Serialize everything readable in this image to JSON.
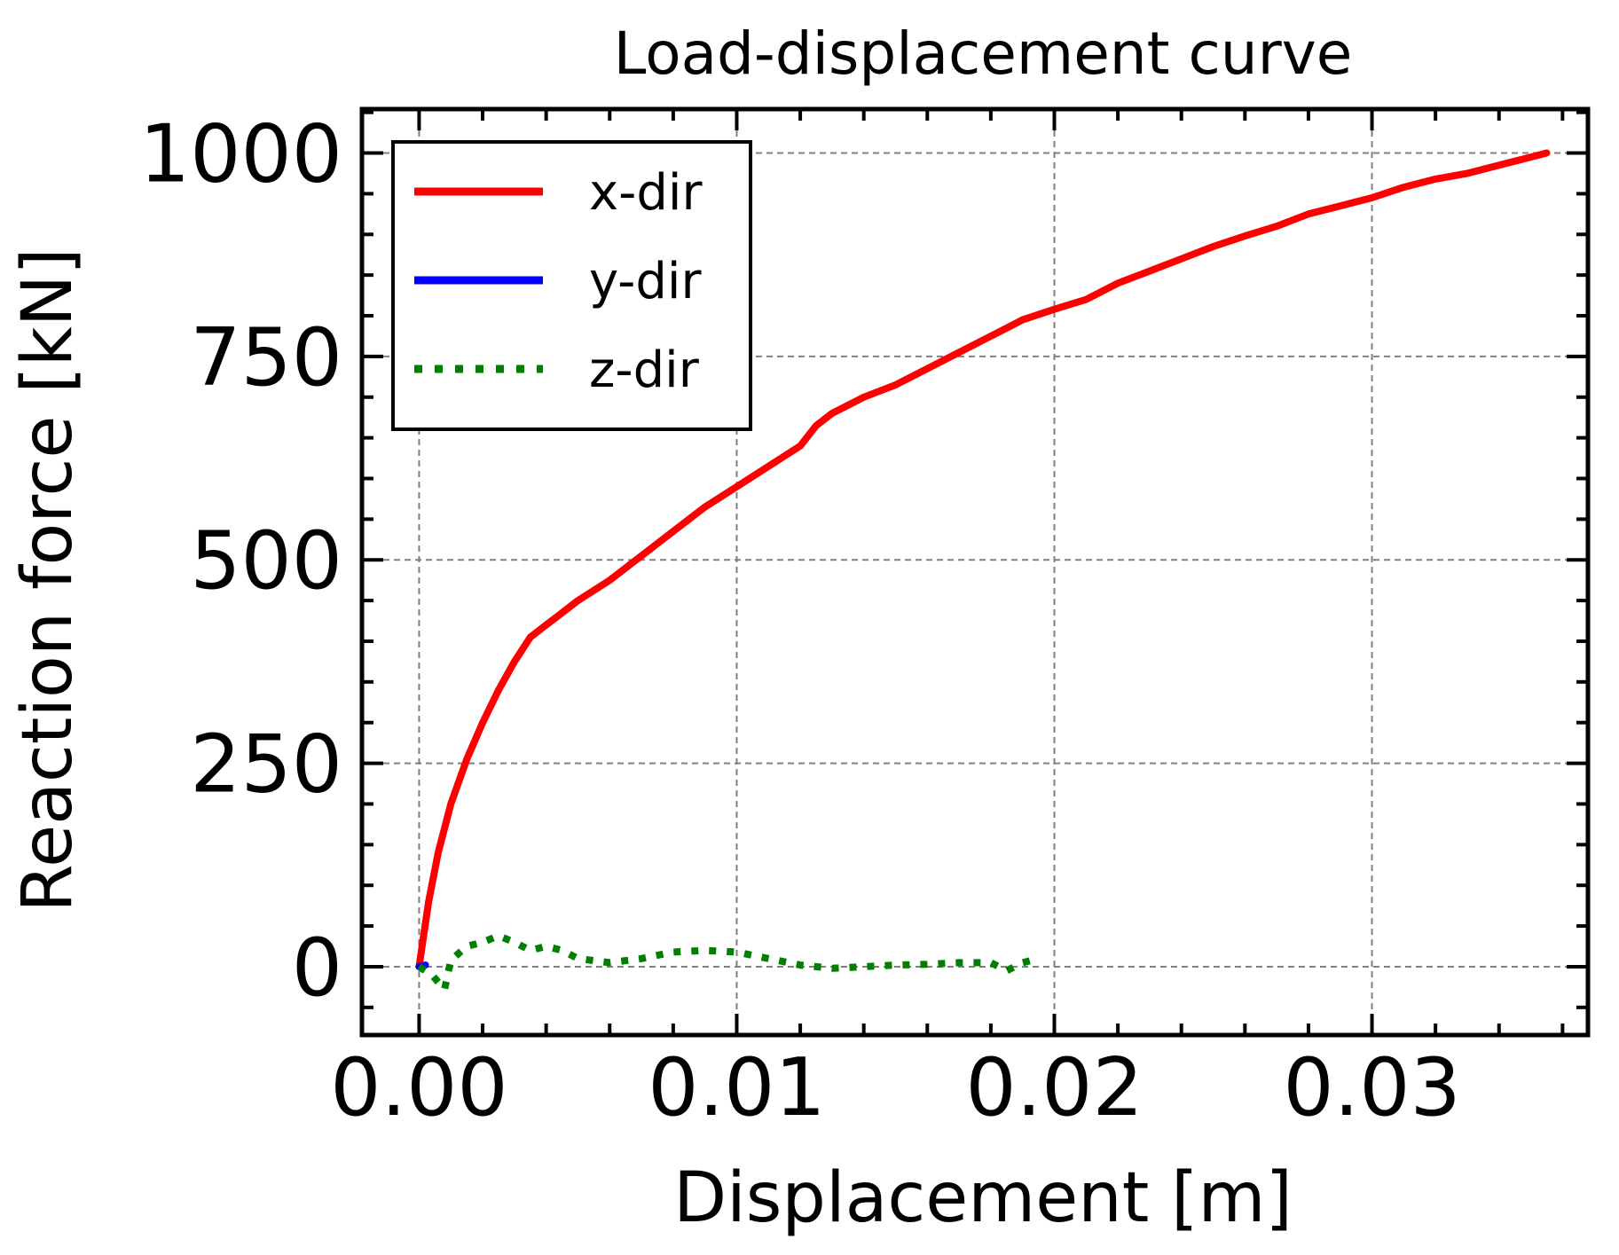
{
  "chart_data": {
    "type": "line",
    "title": "Load-displacement curve",
    "xlabel": "Displacement [m]",
    "ylabel": "Reaction force [kN]",
    "xlim": [
      -0.0018,
      0.0368
    ],
    "ylim": [
      -84,
      1054
    ],
    "xticks": [
      0.0,
      0.01,
      0.02,
      0.03
    ],
    "xtick_labels": [
      "0.00",
      "0.01",
      "0.02",
      "0.03"
    ],
    "yticks": [
      0,
      250,
      500,
      750,
      1000
    ],
    "ytick_labels": [
      "0",
      "250",
      "500",
      "750",
      "1000"
    ],
    "x_minor_step": 0.002,
    "y_minor_step": 50,
    "grid": true,
    "legend_position": "upper-left",
    "series": [
      {
        "name": "x-dir",
        "color": "#ff0000",
        "style": "solid",
        "x": [
          0.0,
          0.0003,
          0.0006,
          0.001,
          0.0015,
          0.002,
          0.0025,
          0.003,
          0.0035,
          0.004,
          0.0045,
          0.005,
          0.006,
          0.007,
          0.008,
          0.009,
          0.01,
          0.011,
          0.012,
          0.0125,
          0.013,
          0.014,
          0.015,
          0.016,
          0.017,
          0.018,
          0.019,
          0.02,
          0.021,
          0.022,
          0.023,
          0.024,
          0.025,
          0.026,
          0.027,
          0.028,
          0.029,
          0.03,
          0.031,
          0.032,
          0.033,
          0.034,
          0.035,
          0.0355
        ],
        "y": [
          0,
          80,
          140,
          200,
          255,
          300,
          340,
          375,
          405,
          420,
          435,
          450,
          475,
          505,
          535,
          565,
          590,
          615,
          640,
          665,
          680,
          700,
          715,
          735,
          755,
          775,
          795,
          808,
          820,
          840,
          855,
          870,
          885,
          898,
          910,
          925,
          935,
          945,
          958,
          968,
          975,
          985,
          995,
          1000
        ]
      },
      {
        "name": "y-dir",
        "color": "#0000ff",
        "style": "solid",
        "x": [
          0.0,
          0.0002
        ],
        "y": [
          0,
          2
        ]
      },
      {
        "name": "z-dir",
        "color": "#007f00",
        "style": "dotted",
        "x": [
          0.0,
          0.0004,
          0.0008,
          0.001,
          0.0015,
          0.002,
          0.0025,
          0.003,
          0.0035,
          0.004,
          0.0045,
          0.005,
          0.006,
          0.007,
          0.008,
          0.009,
          0.01,
          0.011,
          0.012,
          0.013,
          0.014,
          0.015,
          0.016,
          0.017,
          0.018,
          0.0185,
          0.019,
          0.0195
        ],
        "y": [
          0,
          -10,
          -28,
          8,
          25,
          30,
          38,
          30,
          20,
          25,
          20,
          10,
          5,
          10,
          18,
          20,
          18,
          10,
          2,
          -2,
          0,
          2,
          3,
          5,
          5,
          -5,
          5,
          10
        ]
      }
    ]
  }
}
